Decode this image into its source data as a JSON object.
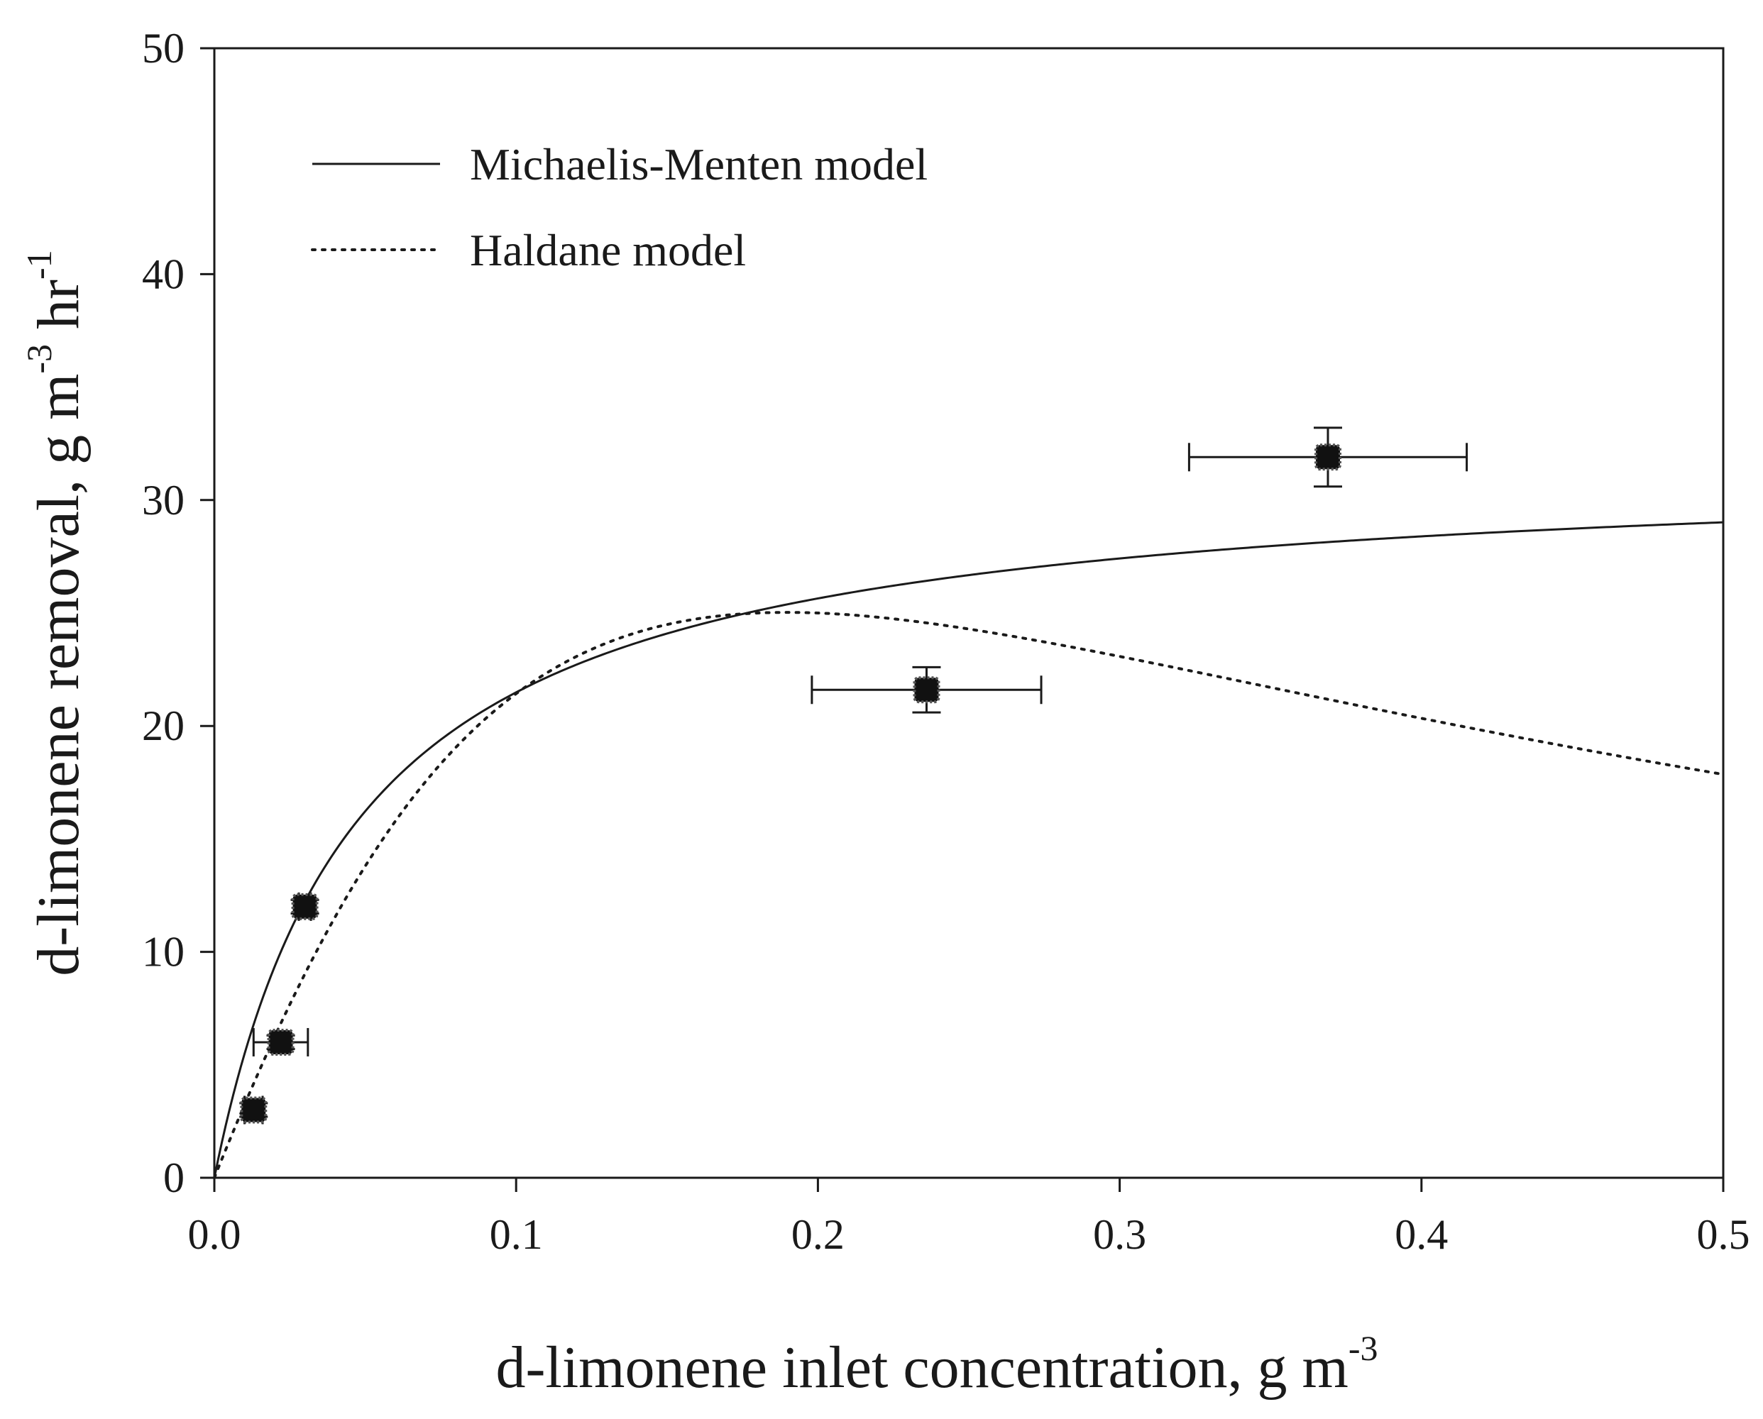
{
  "chart_data": {
    "type": "scatter",
    "title": "",
    "xlabel": {
      "main": "d-limonene inlet concentration, g m",
      "sup": "-3"
    },
    "ylabel": {
      "main": "d-limonene removal, g m",
      "sup1": "-3",
      "mid": " hr",
      "sup2": "-1"
    },
    "xlim": [
      0,
      0.5
    ],
    "ylim": [
      0,
      50
    ],
    "xticks": [
      0.0,
      0.1,
      0.2,
      0.3,
      0.4,
      0.5
    ],
    "xtick_labels": [
      "0.0",
      "0.1",
      "0.2",
      "0.3",
      "0.4",
      "0.5"
    ],
    "yticks": [
      0,
      10,
      20,
      30,
      40,
      50
    ],
    "ytick_labels": [
      "0",
      "10",
      "20",
      "30",
      "40",
      "50"
    ],
    "grid": false,
    "legend_position": "top-left",
    "legend": [
      {
        "label": "Michaelis-Menten model",
        "style": "solid"
      },
      {
        "label": "Haldane model",
        "style": "dotted"
      }
    ],
    "points": [
      {
        "x": 0.013,
        "y": 3.0,
        "xerr": 0.003,
        "yerr": 0.3
      },
      {
        "x": 0.022,
        "y": 6.0,
        "xerr": 0.009,
        "yerr": 0.3
      },
      {
        "x": 0.03,
        "y": 12.0,
        "xerr": 0.002,
        "yerr": 0.3
      },
      {
        "x": 0.236,
        "y": 21.6,
        "xerr": 0.038,
        "yerr": 1.0
      },
      {
        "x": 0.369,
        "y": 31.9,
        "xerr": 0.046,
        "yerr": 1.3
      }
    ],
    "series": [
      {
        "name": "Michaelis-Menten model",
        "model": "michaelis-menten",
        "params": {
          "rmax": 31.8,
          "ks": 0.048
        }
      },
      {
        "name": "Haldane model",
        "model": "haldane",
        "params": {
          "rmax": 120,
          "ks": 0.36,
          "ki": 0.1
        }
      }
    ],
    "colors": {
      "line": "#1a1a1a",
      "marker": "#111111"
    }
  }
}
